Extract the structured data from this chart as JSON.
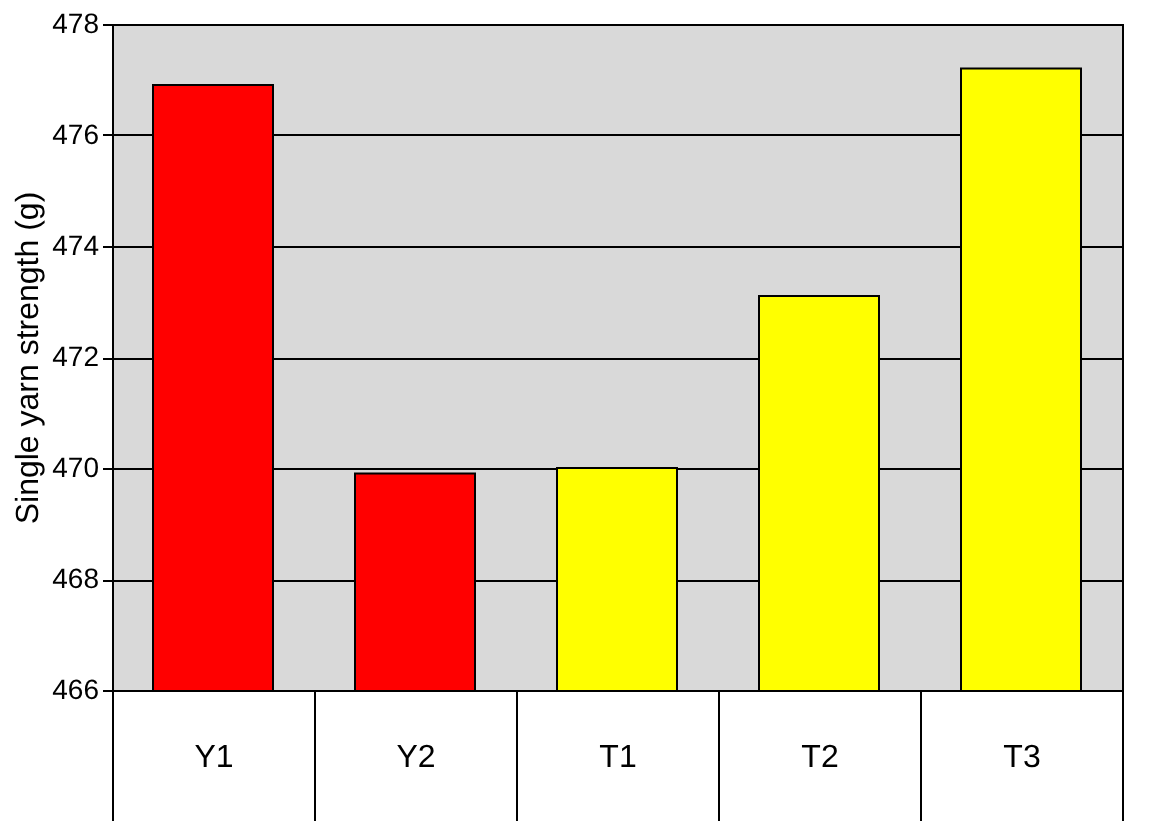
{
  "chart_data": {
    "type": "bar",
    "ylabel": "Single yarn strength (g)",
    "categories": [
      "Y1",
      "Y2",
      "T1",
      "T2",
      "T3"
    ],
    "values": [
      476.9,
      469.9,
      470.0,
      473.1,
      477.2
    ],
    "colors": [
      "#ff0000",
      "#ff0000",
      "#ffff00",
      "#ffff00",
      "#ffff00"
    ],
    "ylim": [
      466,
      478
    ],
    "yticks": [
      466,
      468,
      470,
      472,
      474,
      476,
      478
    ],
    "grid": "y"
  }
}
